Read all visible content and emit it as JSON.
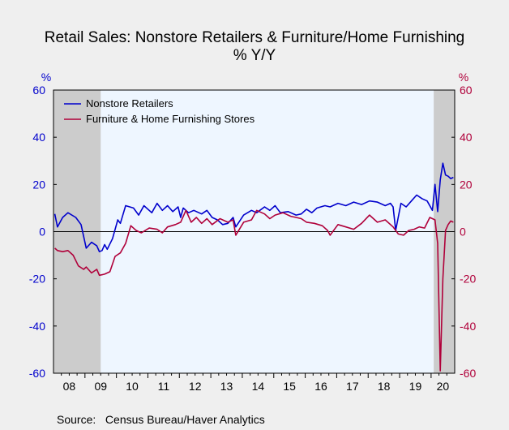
{
  "chart_data": {
    "type": "line",
    "title": "Retail Sales: Nonstore Retailers & Furniture/Home Furnishing",
    "subtitle": "% Y/Y",
    "y_unit_left": "%",
    "y_unit_right": "%",
    "ylim": [
      -60,
      60
    ],
    "yticks": [
      -60,
      -40,
      -20,
      0,
      20,
      40,
      60
    ],
    "yticks_right": [
      -60,
      -40,
      -20,
      0,
      20,
      40,
      60
    ],
    "x_range": [
      "2008-01",
      "2020-09"
    ],
    "x_tick_labels": [
      "08",
      "09",
      "10",
      "11",
      "12",
      "13",
      "14",
      "15",
      "16",
      "17",
      "18",
      "19",
      "20"
    ],
    "grid": false,
    "zero_line": true,
    "recession_shading": [
      {
        "start": "2008-01",
        "end": "2009-06"
      },
      {
        "start": "2020-02",
        "end": "2020-09"
      }
    ],
    "legend_position": "top-left",
    "colors": {
      "nonstore": "#0000cc",
      "furniture": "#b0003a",
      "left_axis": "#0000cc",
      "right_axis": "#b0003a",
      "plot_background": "#eef6ff",
      "recession": "#cccccc"
    },
    "series": [
      {
        "name": "Nonstore Retailers",
        "axis": "left",
        "color": "#0000cc",
        "points": [
          [
            "2008-01",
            7.5
          ],
          [
            "2008-02",
            2.0
          ],
          [
            "2008-04",
            6.0
          ],
          [
            "2008-06",
            8.0
          ],
          [
            "2008-09",
            6.0
          ],
          [
            "2008-11",
            3.0
          ],
          [
            "2009-01",
            -7.0
          ],
          [
            "2009-03",
            -4.5
          ],
          [
            "2009-05",
            -6.0
          ],
          [
            "2009-06",
            -8.5
          ],
          [
            "2009-07",
            -8.0
          ],
          [
            "2009-08",
            -5.5
          ],
          [
            "2009-09",
            -7.5
          ],
          [
            "2009-11",
            -3.0
          ],
          [
            "2010-01",
            5.0
          ],
          [
            "2010-02",
            3.5
          ],
          [
            "2010-04",
            11.0
          ],
          [
            "2010-07",
            10.0
          ],
          [
            "2010-09",
            7.0
          ],
          [
            "2010-11",
            11.0
          ],
          [
            "2011-02",
            8.0
          ],
          [
            "2011-04",
            12.0
          ],
          [
            "2011-06",
            9.0
          ],
          [
            "2011-08",
            11.0
          ],
          [
            "2011-10",
            8.5
          ],
          [
            "2011-12",
            10.5
          ],
          [
            "2012-01",
            6.0
          ],
          [
            "2012-02",
            10.0
          ],
          [
            "2012-04",
            8.0
          ],
          [
            "2012-06",
            9.0
          ],
          [
            "2012-09",
            7.5
          ],
          [
            "2012-11",
            9.0
          ],
          [
            "2013-01",
            6.0
          ],
          [
            "2013-03",
            5.0
          ],
          [
            "2013-05",
            3.0
          ],
          [
            "2013-07",
            3.5
          ],
          [
            "2013-09",
            6.0
          ],
          [
            "2013-10",
            2.0
          ],
          [
            "2014-01",
            7.0
          ],
          [
            "2014-04",
            9.0
          ],
          [
            "2014-06",
            8.0
          ],
          [
            "2014-09",
            10.5
          ],
          [
            "2014-11",
            9.0
          ],
          [
            "2015-01",
            11.0
          ],
          [
            "2015-03",
            8.0
          ],
          [
            "2015-06",
            8.5
          ],
          [
            "2015-09",
            7.0
          ],
          [
            "2015-11",
            7.5
          ],
          [
            "2016-01",
            9.5
          ],
          [
            "2016-03",
            8.0
          ],
          [
            "2016-05",
            10.0
          ],
          [
            "2016-08",
            11.0
          ],
          [
            "2016-10",
            10.5
          ],
          [
            "2017-01",
            12.0
          ],
          [
            "2017-04",
            11.0
          ],
          [
            "2017-07",
            12.5
          ],
          [
            "2017-10",
            11.5
          ],
          [
            "2018-01",
            13.0
          ],
          [
            "2018-04",
            12.5
          ],
          [
            "2018-07",
            11.0
          ],
          [
            "2018-09",
            12.0
          ],
          [
            "2018-10",
            10.5
          ],
          [
            "2018-11",
            0.5
          ],
          [
            "2019-01",
            12.0
          ],
          [
            "2019-03",
            10.5
          ],
          [
            "2019-05",
            13.0
          ],
          [
            "2019-07",
            15.5
          ],
          [
            "2019-09",
            14.0
          ],
          [
            "2019-11",
            13.0
          ],
          [
            "2020-01",
            9.0
          ],
          [
            "2020-02",
            20.0
          ],
          [
            "2020-03",
            8.5
          ],
          [
            "2020-04",
            22.0
          ],
          [
            "2020-05",
            29.0
          ],
          [
            "2020-06",
            24.0
          ],
          [
            "2020-07",
            23.5
          ],
          [
            "2020-08",
            22.5
          ],
          [
            "2020-09",
            23.0
          ]
        ]
      },
      {
        "name": "Furniture & Home Furnishing Stores",
        "axis": "right",
        "color": "#b0003a",
        "points": [
          [
            "2008-01",
            -7.0
          ],
          [
            "2008-02",
            -8.0
          ],
          [
            "2008-04",
            -8.5
          ],
          [
            "2008-06",
            -8.0
          ],
          [
            "2008-08",
            -10.0
          ],
          [
            "2008-10",
            -14.5
          ],
          [
            "2008-12",
            -16.0
          ],
          [
            "2009-01",
            -15.0
          ],
          [
            "2009-03",
            -17.5
          ],
          [
            "2009-05",
            -16.0
          ],
          [
            "2009-06",
            -18.5
          ],
          [
            "2009-08",
            -18.0
          ],
          [
            "2009-10",
            -17.0
          ],
          [
            "2009-12",
            -10.5
          ],
          [
            "2010-02",
            -9.0
          ],
          [
            "2010-04",
            -5.0
          ],
          [
            "2010-06",
            2.5
          ],
          [
            "2010-08",
            0.5
          ],
          [
            "2010-10",
            -0.5
          ],
          [
            "2011-01",
            1.5
          ],
          [
            "2011-04",
            1.0
          ],
          [
            "2011-06",
            -0.5
          ],
          [
            "2011-08",
            2.0
          ],
          [
            "2011-11",
            3.0
          ],
          [
            "2012-01",
            4.0
          ],
          [
            "2012-03",
            9.0
          ],
          [
            "2012-05",
            4.0
          ],
          [
            "2012-07",
            6.0
          ],
          [
            "2012-09",
            3.5
          ],
          [
            "2012-11",
            5.5
          ],
          [
            "2013-01",
            3.0
          ],
          [
            "2013-04",
            5.5
          ],
          [
            "2013-07",
            4.0
          ],
          [
            "2013-09",
            5.0
          ],
          [
            "2013-10",
            -1.5
          ],
          [
            "2014-01",
            4.0
          ],
          [
            "2014-04",
            5.0
          ],
          [
            "2014-06",
            9.0
          ],
          [
            "2014-09",
            7.5
          ],
          [
            "2014-11",
            5.5
          ],
          [
            "2015-01",
            7.0
          ],
          [
            "2015-04",
            8.0
          ],
          [
            "2015-07",
            6.5
          ],
          [
            "2015-09",
            6.0
          ],
          [
            "2015-11",
            5.5
          ],
          [
            "2016-01",
            4.0
          ],
          [
            "2016-04",
            3.5
          ],
          [
            "2016-07",
            2.5
          ],
          [
            "2016-09",
            0.5
          ],
          [
            "2016-10",
            -1.5
          ],
          [
            "2017-01",
            3.0
          ],
          [
            "2017-04",
            2.0
          ],
          [
            "2017-07",
            1.0
          ],
          [
            "2017-10",
            3.5
          ],
          [
            "2018-01",
            7.0
          ],
          [
            "2018-04",
            4.0
          ],
          [
            "2018-07",
            5.0
          ],
          [
            "2018-10",
            2.0
          ],
          [
            "2018-12",
            -1.0
          ],
          [
            "2019-02",
            -1.5
          ],
          [
            "2019-04",
            0.5
          ],
          [
            "2019-06",
            1.0
          ],
          [
            "2019-08",
            2.0
          ],
          [
            "2019-10",
            1.5
          ],
          [
            "2019-12",
            6.0
          ],
          [
            "2020-02",
            5.0
          ],
          [
            "2020-03",
            -5.0
          ],
          [
            "2020-04",
            -59.0
          ],
          [
            "2020-05",
            -20.0
          ],
          [
            "2020-06",
            0.5
          ],
          [
            "2020-07",
            3.0
          ],
          [
            "2020-08",
            4.5
          ],
          [
            "2020-09",
            4.0
          ]
        ]
      }
    ],
    "source": "Source:   Census Bureau/Haver Analytics"
  }
}
